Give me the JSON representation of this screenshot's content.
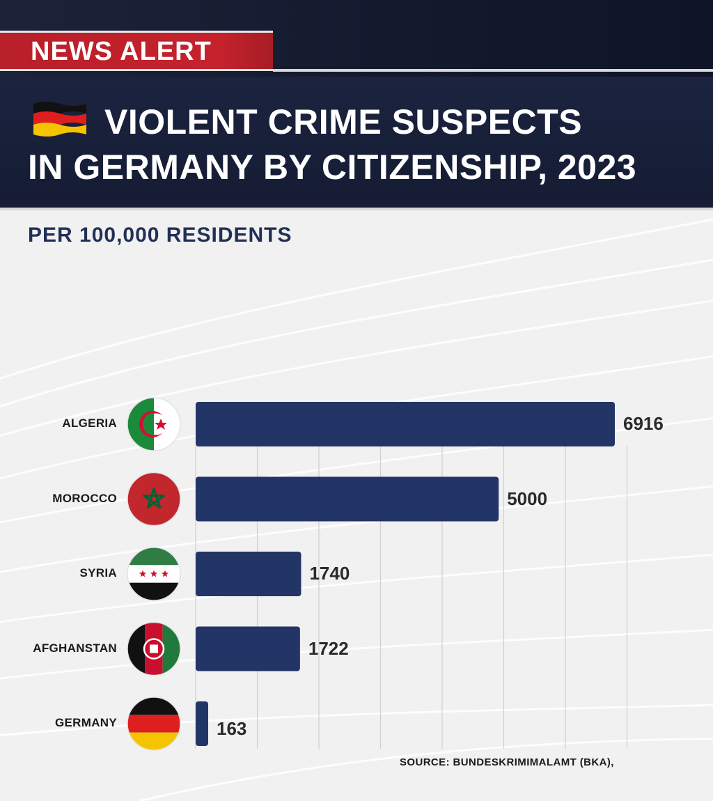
{
  "header": {
    "alert_label": "NEWS ALERT",
    "title_line1": "VIOLENT CRIME SUSPECTS",
    "title_line2": "IN GERMANY BY CITIZENSHIP, 2023",
    "title_flag_icon": "germany-flag-icon"
  },
  "subtitle": "PER 100,000 RESIDENTS",
  "source": "SOURCE: BUNDESKRIMIMALAMT (BKA),",
  "colors": {
    "bar": "#233566",
    "header": "#1b2340",
    "alert": "#c5222c",
    "subtitle": "#223055"
  },
  "chart_data": {
    "type": "bar",
    "orientation": "horizontal",
    "title": "VIOLENT CRIME SUSPECTS IN GERMANY BY CITIZENSHIP, 2023",
    "subtitle": "PER 100,000 RESIDENTS",
    "categories": [
      "ALGERIA",
      "MOROCCO",
      "SYRIA",
      "AFGHANSTAN",
      "GERMANY"
    ],
    "values": [
      6916,
      5000,
      1740,
      1722,
      163
    ],
    "value_labels": [
      "6916",
      "5000",
      "1740",
      "1722",
      "163"
    ],
    "flag_icons": [
      "algeria-flag-icon",
      "morocco-flag-icon",
      "syria-flag-icon",
      "afghanistan-flag-icon",
      "germany-flag-icon"
    ],
    "xlim": [
      0,
      7000
    ],
    "grid": true,
    "legend": "none"
  }
}
